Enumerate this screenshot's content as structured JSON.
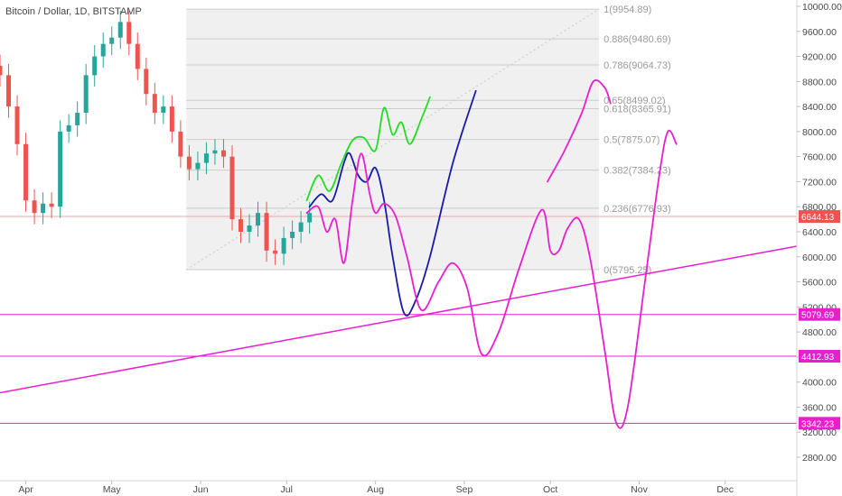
{
  "header": {
    "title": "Bitcoin / Dollar, 1D, BITSTAMP"
  },
  "chart_data": {
    "type": "candlestick",
    "title": "Bitcoin / Dollar, 1D, BITSTAMP",
    "y_axis": {
      "range": [
        2500,
        10200
      ],
      "ticks": [
        10000,
        9600,
        9200,
        8800,
        8400,
        8000,
        7600,
        7200,
        6800,
        6400,
        6000,
        5600,
        5200,
        4800,
        4400,
        4000,
        3600,
        3200,
        2800
      ],
      "tick_labels": [
        "10000.00",
        "9600.00",
        "9200.00",
        "8800.00",
        "8400.00",
        "8000.00",
        "7600.00",
        "7200.00",
        "6800.00",
        "6400.00",
        "6000.00",
        "5600.00",
        "5200.00",
        "4800.00",
        "4400.00",
        "4000.00",
        "3600.00",
        "3200.00",
        "2800.00"
      ]
    },
    "x_axis": {
      "range": [
        "2018-03-23",
        "2018-12-26"
      ],
      "ticks": [
        {
          "label": "Apr",
          "date": "2018-04-01"
        },
        {
          "label": "May",
          "date": "2018-05-01"
        },
        {
          "label": "Jun",
          "date": "2018-06-01"
        },
        {
          "label": "Jul",
          "date": "2018-07-01"
        },
        {
          "label": "Aug",
          "date": "2018-08-01"
        },
        {
          "label": "Sep",
          "date": "2018-09-01"
        },
        {
          "label": "Oct",
          "date": "2018-10-01"
        },
        {
          "label": "Nov",
          "date": "2018-11-01"
        },
        {
          "label": "Dec",
          "date": "2018-12-01"
        }
      ]
    },
    "candles": {
      "dates": [
        "2018-03-23",
        "2018-03-26",
        "2018-03-29",
        "2018-04-01",
        "2018-04-04",
        "2018-04-07",
        "2018-04-10",
        "2018-04-13",
        "2018-04-16",
        "2018-04-19",
        "2018-04-22",
        "2018-04-25",
        "2018-04-28",
        "2018-05-01",
        "2018-05-04",
        "2018-05-07",
        "2018-05-10",
        "2018-05-13",
        "2018-05-16",
        "2018-05-19",
        "2018-05-22",
        "2018-05-25",
        "2018-05-28",
        "2018-05-31",
        "2018-06-03",
        "2018-06-06",
        "2018-06-09",
        "2018-06-12",
        "2018-06-15",
        "2018-06-18",
        "2018-06-21",
        "2018-06-24",
        "2018-06-27",
        "2018-06-30",
        "2018-07-03",
        "2018-07-06",
        "2018-07-09"
      ],
      "close": [
        8900,
        8400,
        7800,
        6900,
        6700,
        6850,
        6800,
        8000,
        8100,
        8300,
        8900,
        9200,
        9400,
        9500,
        9750,
        9400,
        9000,
        8600,
        8300,
        8400,
        8000,
        7600,
        7400,
        7500,
        7650,
        7700,
        7600,
        6600,
        6400,
        6500,
        6700,
        6100,
        6050,
        6300,
        6400,
        6550,
        6700
      ]
    },
    "fibonacci": {
      "levels": [
        {
          "ratio": "1",
          "price": 9954.89,
          "label": "1(9954.89)"
        },
        {
          "ratio": "0.886",
          "price": 9480.69,
          "label": "0.886(9480.69)"
        },
        {
          "ratio": "0.786",
          "price": 9064.73,
          "label": "0.786(9064.73)"
        },
        {
          "ratio": "0.65",
          "price": 8499.02,
          "label": "0.65(8499.02)"
        },
        {
          "ratio": "0.618",
          "price": 8365.91,
          "label": "0.618(8365.91)"
        },
        {
          "ratio": "0.5",
          "price": 7875.07,
          "label": "0.5(7875.07)"
        },
        {
          "ratio": "0.382",
          "price": 7384.23,
          "label": "0.382(7384.23)"
        },
        {
          "ratio": "0.236",
          "price": 6776.93,
          "label": "0.236(6776.93)"
        },
        {
          "ratio": "0",
          "price": 5795.25,
          "label": "0(5795.25)"
        }
      ],
      "start_date": "2018-05-27",
      "end_date": "2018-10-18"
    },
    "horizontal_levels": [
      {
        "price": 6644.13,
        "label": "6644.13",
        "color": "#ef5350",
        "line_color": "#f6a5a5"
      },
      {
        "price": 5079.69,
        "label": "5079.69",
        "color": "#e91ecf",
        "line_color": "#e91ecf"
      },
      {
        "price": 4412.93,
        "label": "4412.93",
        "color": "#e91ecf",
        "line_color": "#e91ecf"
      },
      {
        "price": 3342.23,
        "label": "3342.23",
        "color": "#e91ecf",
        "line_color": "#e91ecf"
      }
    ],
    "trendline": {
      "from": {
        "date": "2018-03-23",
        "price": 3830
      },
      "to": {
        "date": "2018-12-26",
        "price": 6170
      },
      "color": "#e91ecf"
    },
    "drawings": [
      {
        "color": "#22dd22",
        "points": [
          [
            "2018-07-08",
            6900
          ],
          [
            "2018-07-12",
            7300
          ],
          [
            "2018-07-16",
            7050
          ],
          [
            "2018-07-20",
            7480
          ],
          [
            "2018-07-24",
            7860
          ],
          [
            "2018-07-28",
            7900
          ],
          [
            "2018-08-01",
            7700
          ],
          [
            "2018-08-04",
            8380
          ],
          [
            "2018-08-07",
            7950
          ],
          [
            "2018-08-10",
            8150
          ],
          [
            "2018-08-13",
            7800
          ],
          [
            "2018-08-17",
            8200
          ],
          [
            "2018-08-20",
            8550
          ]
        ]
      },
      {
        "color": "#1a1aaa",
        "points": [
          [
            "2018-07-09",
            6800
          ],
          [
            "2018-07-13",
            7000
          ],
          [
            "2018-07-17",
            6900
          ],
          [
            "2018-07-21",
            7500
          ],
          [
            "2018-07-23",
            7650
          ],
          [
            "2018-07-26",
            7300
          ],
          [
            "2018-07-29",
            7200
          ],
          [
            "2018-08-01",
            7420
          ],
          [
            "2018-08-04",
            6900
          ],
          [
            "2018-08-07",
            6000
          ],
          [
            "2018-08-11",
            5100
          ],
          [
            "2018-08-15",
            5300
          ],
          [
            "2018-08-20",
            6000
          ],
          [
            "2018-08-28",
            7500
          ],
          [
            "2018-09-05",
            8650
          ]
        ]
      },
      {
        "color": "#e91ecf",
        "points": [
          [
            "2018-07-08",
            6700
          ],
          [
            "2018-07-12",
            6800
          ],
          [
            "2018-07-15",
            6400
          ],
          [
            "2018-07-18",
            6600
          ],
          [
            "2018-07-21",
            5900
          ],
          [
            "2018-07-24",
            6900
          ],
          [
            "2018-07-27",
            7650
          ],
          [
            "2018-07-30",
            7000
          ],
          [
            "2018-08-01",
            6700
          ],
          [
            "2018-08-04",
            6850
          ],
          [
            "2018-08-08",
            6650
          ],
          [
            "2018-08-12",
            6000
          ],
          [
            "2018-08-17",
            5150
          ],
          [
            "2018-08-23",
            5600
          ],
          [
            "2018-08-28",
            5900
          ],
          [
            "2018-09-02",
            5500
          ],
          [
            "2018-09-07",
            4450
          ],
          [
            "2018-09-13",
            4800
          ],
          [
            "2018-09-20",
            5800
          ],
          [
            "2018-09-28",
            6750
          ],
          [
            "2018-10-01",
            6100
          ],
          [
            "2018-10-04",
            6100
          ],
          [
            "2018-10-07",
            6450
          ],
          [
            "2018-10-11",
            6600
          ],
          [
            "2018-10-15",
            5950
          ],
          [
            "2018-10-20",
            4500
          ],
          [
            "2018-10-24",
            3350
          ],
          [
            "2018-10-28",
            3600
          ],
          [
            "2018-11-03",
            5600
          ],
          [
            "2018-11-08",
            7300
          ],
          [
            "2018-11-11",
            8000
          ],
          [
            "2018-11-14",
            7800
          ]
        ]
      },
      {
        "color": "#e91ecf",
        "points": [
          [
            "2018-09-30",
            7200
          ],
          [
            "2018-10-06",
            7700
          ],
          [
            "2018-10-12",
            8300
          ],
          [
            "2018-10-16",
            8800
          ],
          [
            "2018-10-20",
            8700
          ],
          [
            "2018-10-22",
            8450
          ]
        ]
      }
    ]
  }
}
